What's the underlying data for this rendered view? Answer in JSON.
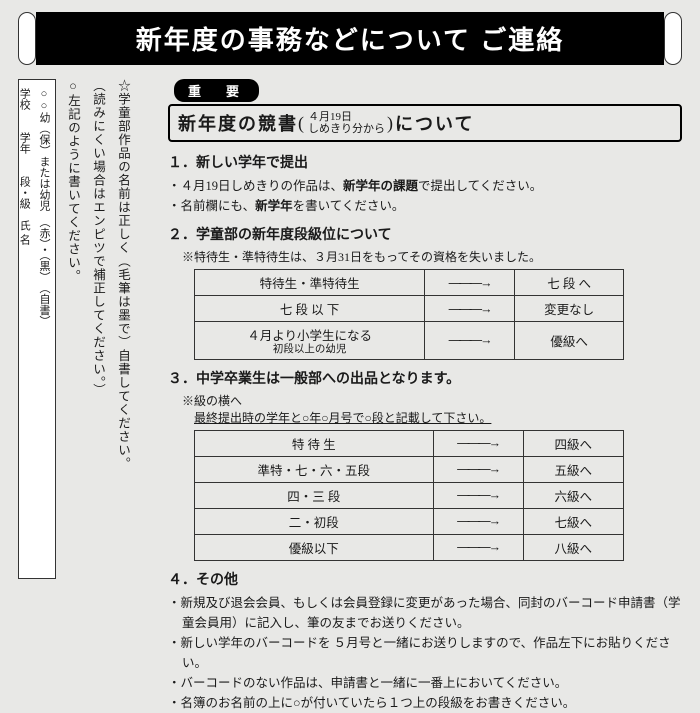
{
  "banner": "新年度の事務などについて ご連絡",
  "important_label": "重　要",
  "sub_banner": {
    "prefix": "新年度の競書",
    "paren_top": "４月19日",
    "paren_bottom": "しめきり分から",
    "suffix": "について"
  },
  "sec1": {
    "title": "１．新しい学年で提出",
    "b1_pre": "４月19日しめきりの作品は、",
    "b1_bold": "新学年の課題",
    "b1_post": "で提出してください。",
    "b2_pre": "名前欄にも、",
    "b2_bold": "新学年",
    "b2_post": "を書いてください。"
  },
  "sec2": {
    "title": "２．学童部の新年度段級位について",
    "note": "※特待生・準特待生は、３月31日をもってその資格を失いました。",
    "rows": [
      {
        "l": "特待生・準特待生",
        "r": "七 段 へ"
      },
      {
        "l": "七 段 以 下",
        "r": "変更なし"
      },
      {
        "l": "４月より小学生になる",
        "l2": "初段以上の幼児",
        "r": "優級へ"
      }
    ]
  },
  "sec3": {
    "title": "３．中学卒業生は一般部への出品となります。",
    "sub1": "※級の横へ",
    "sub2": "最終提出時の学年と○年○月号で○段と記載して下さい。",
    "rows": [
      {
        "l": "特  待  生",
        "r": "四級へ"
      },
      {
        "l": "準特・七・六・五段",
        "r": "五級へ"
      },
      {
        "l": "四・三 段",
        "r": "六級へ"
      },
      {
        "l": "二・初段",
        "r": "七級へ"
      },
      {
        "l": "優級以下",
        "r": "八級へ"
      }
    ]
  },
  "sec4": {
    "title": "４．その他",
    "b1": "新規及び退会会員、もしくは会員登録に変更があった場合、同封のバーコード申請書（学童会員用）に記入し、筆の友までお送りください。",
    "b2": "新しい学年のバーコードを ５月号と一緒にお送りしますので、作品左下にお貼りください。",
    "b3": "バーコードのない作品は、申請書と一緒に一番上においてください。",
    "b4": "名簿のお名前の上に○が付いていたら１つ上の段級をお書きください。"
  },
  "vert": {
    "n1": "☆学童部作品の名前は正しく（毛筆は墨で）自書してください。",
    "n2": "（読みにくい場合はエンピツで補正してください。）",
    "n3": "○左記のように書いてください。"
  },
  "sample": {
    "line1": "○○幼（保）または幼児　（赤）・（黒）　（自書）",
    "line2": "学校　　学年　　段・級　氏 名"
  },
  "arrow": "―――→"
}
